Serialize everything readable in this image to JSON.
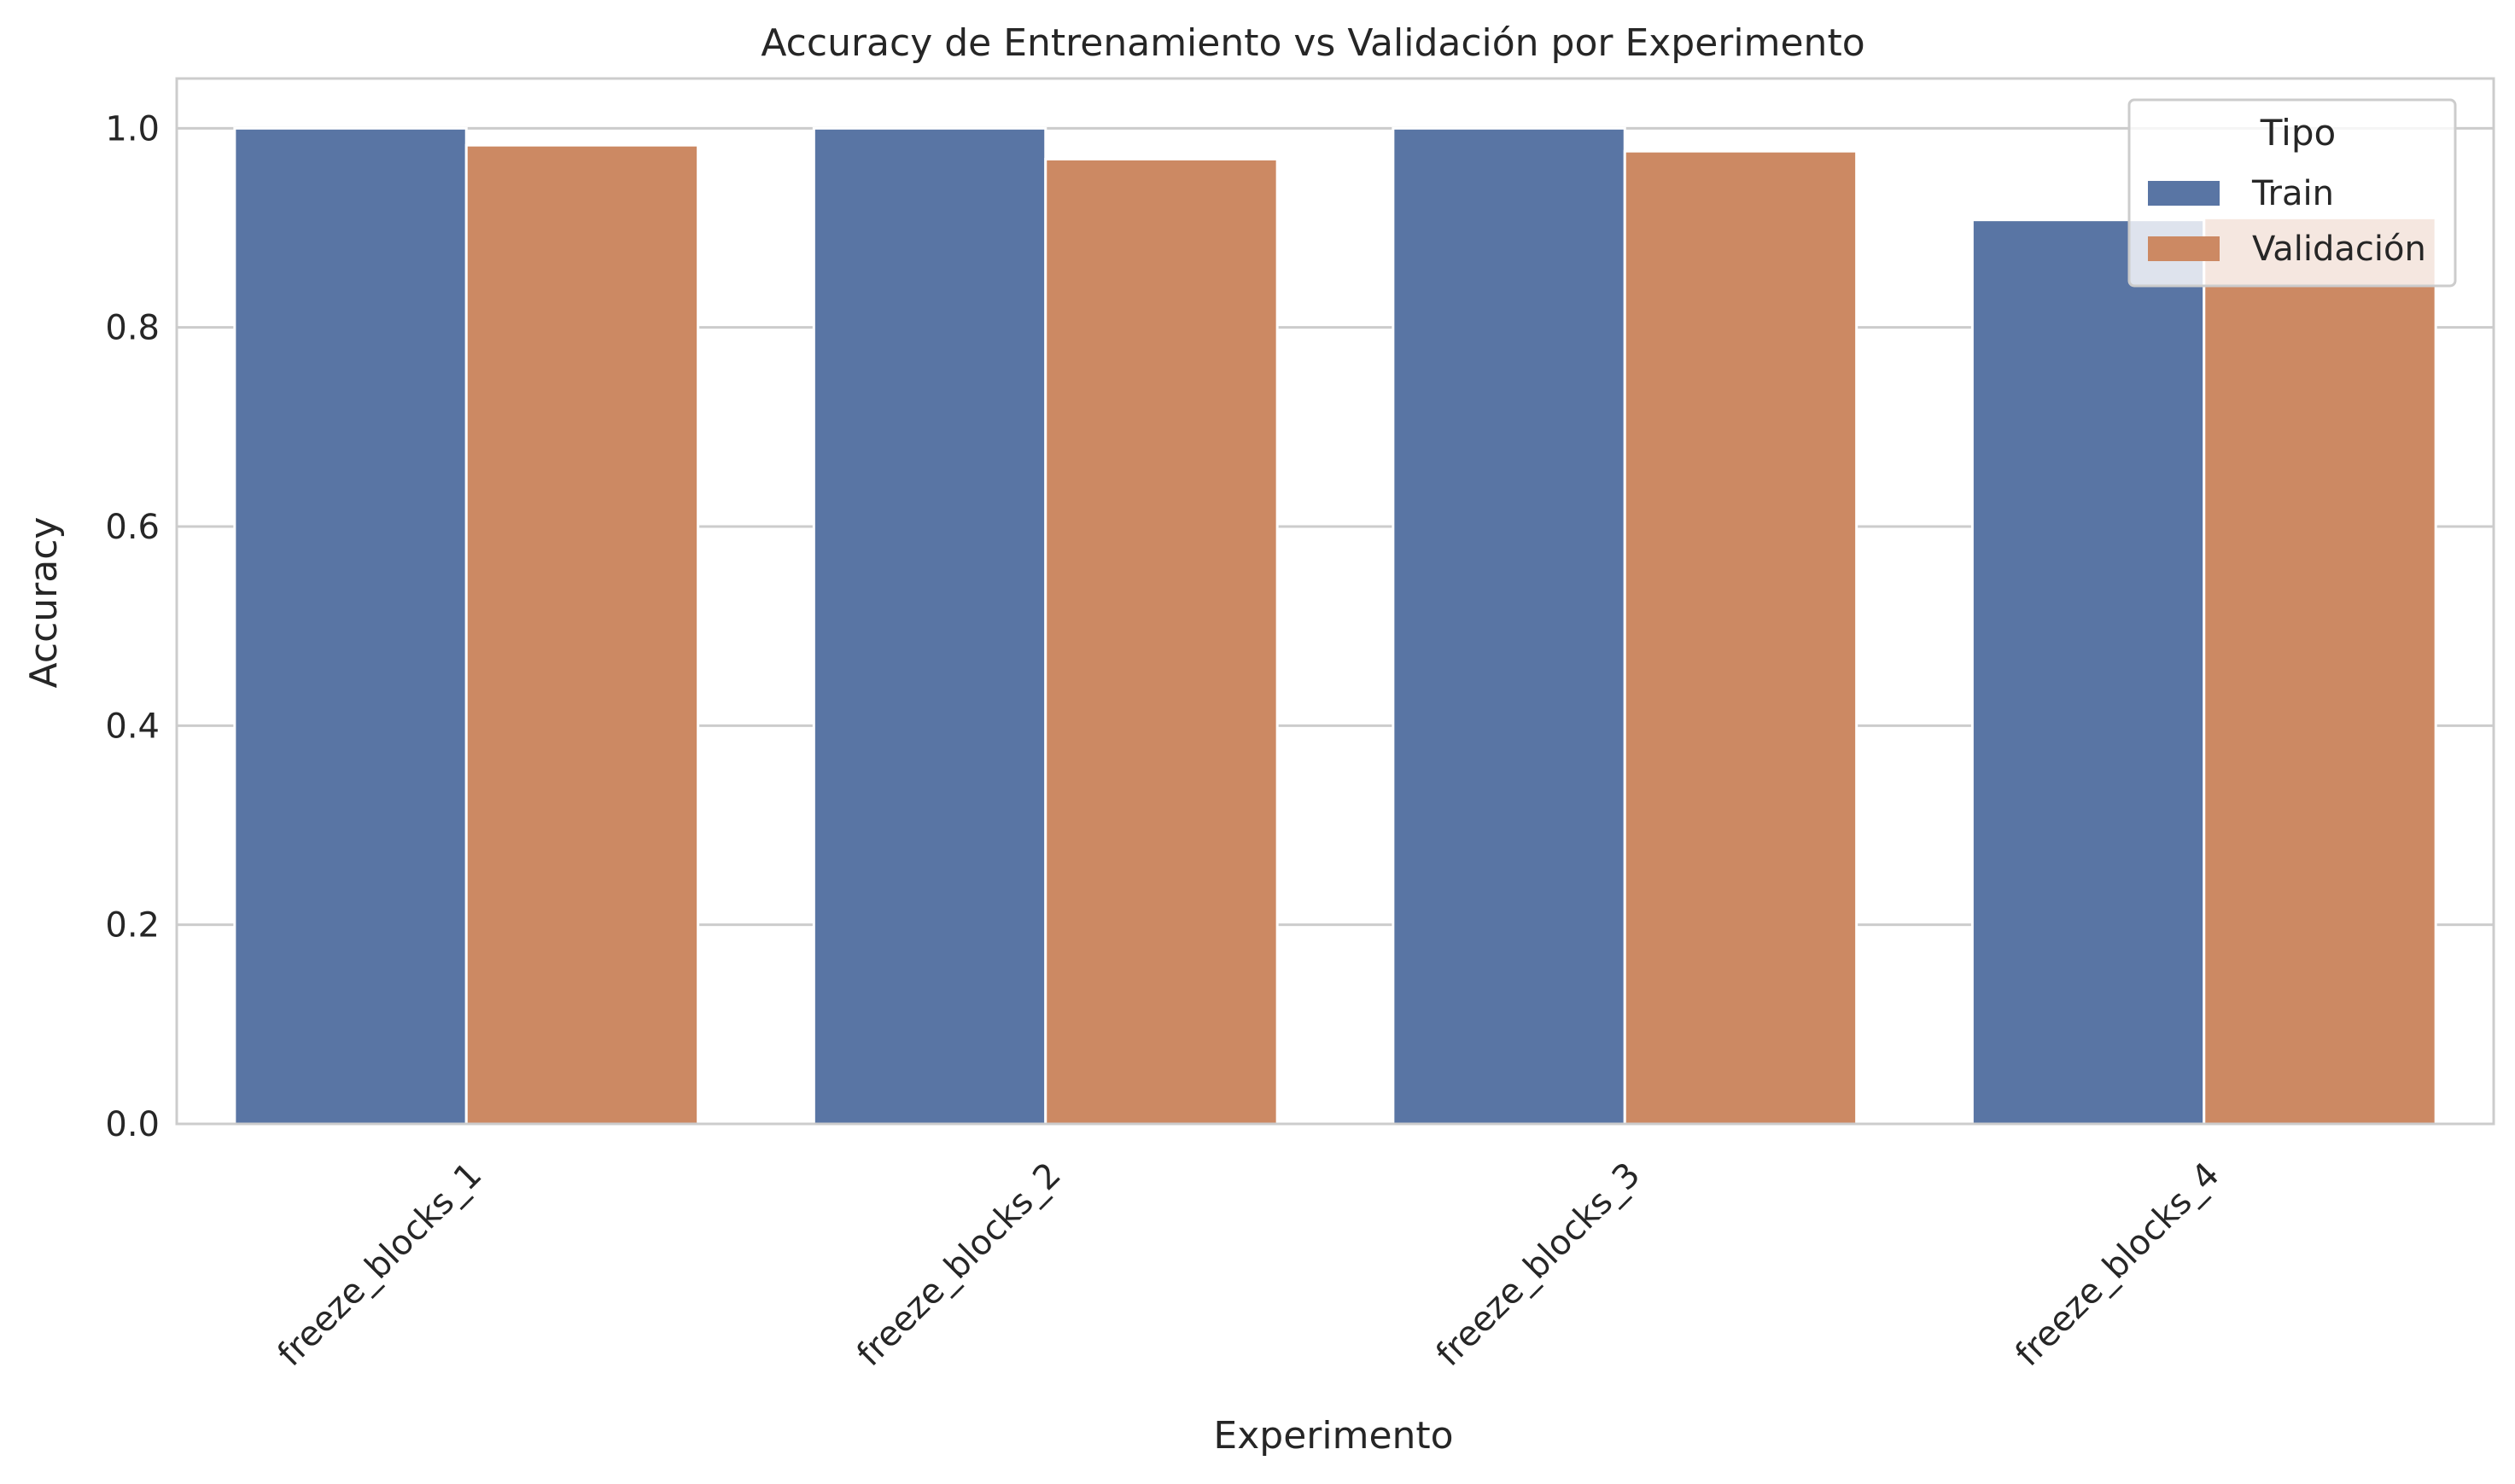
{
  "chart_data": {
    "type": "bar",
    "title": "Accuracy de Entrenamiento vs Validación por Experimento",
    "xlabel": "Experimento",
    "ylabel": "Accuracy",
    "categories": [
      "freeze_blocks_1",
      "freeze_blocks_2",
      "freeze_blocks_3",
      "freeze_blocks_4"
    ],
    "series": [
      {
        "name": "Train",
        "values": [
          1.0,
          1.0,
          1.0,
          0.908
        ],
        "color": "#5975a4"
      },
      {
        "name": "Validación",
        "values": [
          0.983,
          0.969,
          0.977,
          0.91
        ],
        "color": "#cc8963"
      }
    ],
    "ylim": [
      0,
      1.05
    ],
    "yticks": [
      "0.0",
      "0.2",
      "0.4",
      "0.6",
      "0.8",
      "1.0"
    ],
    "grid": true,
    "legend": {
      "title": "Tipo",
      "placement": "top-right"
    },
    "colors": {
      "grid": "#cccccc",
      "spine": "#cccccc",
      "text": "#262626",
      "background": "#ffffff"
    }
  }
}
